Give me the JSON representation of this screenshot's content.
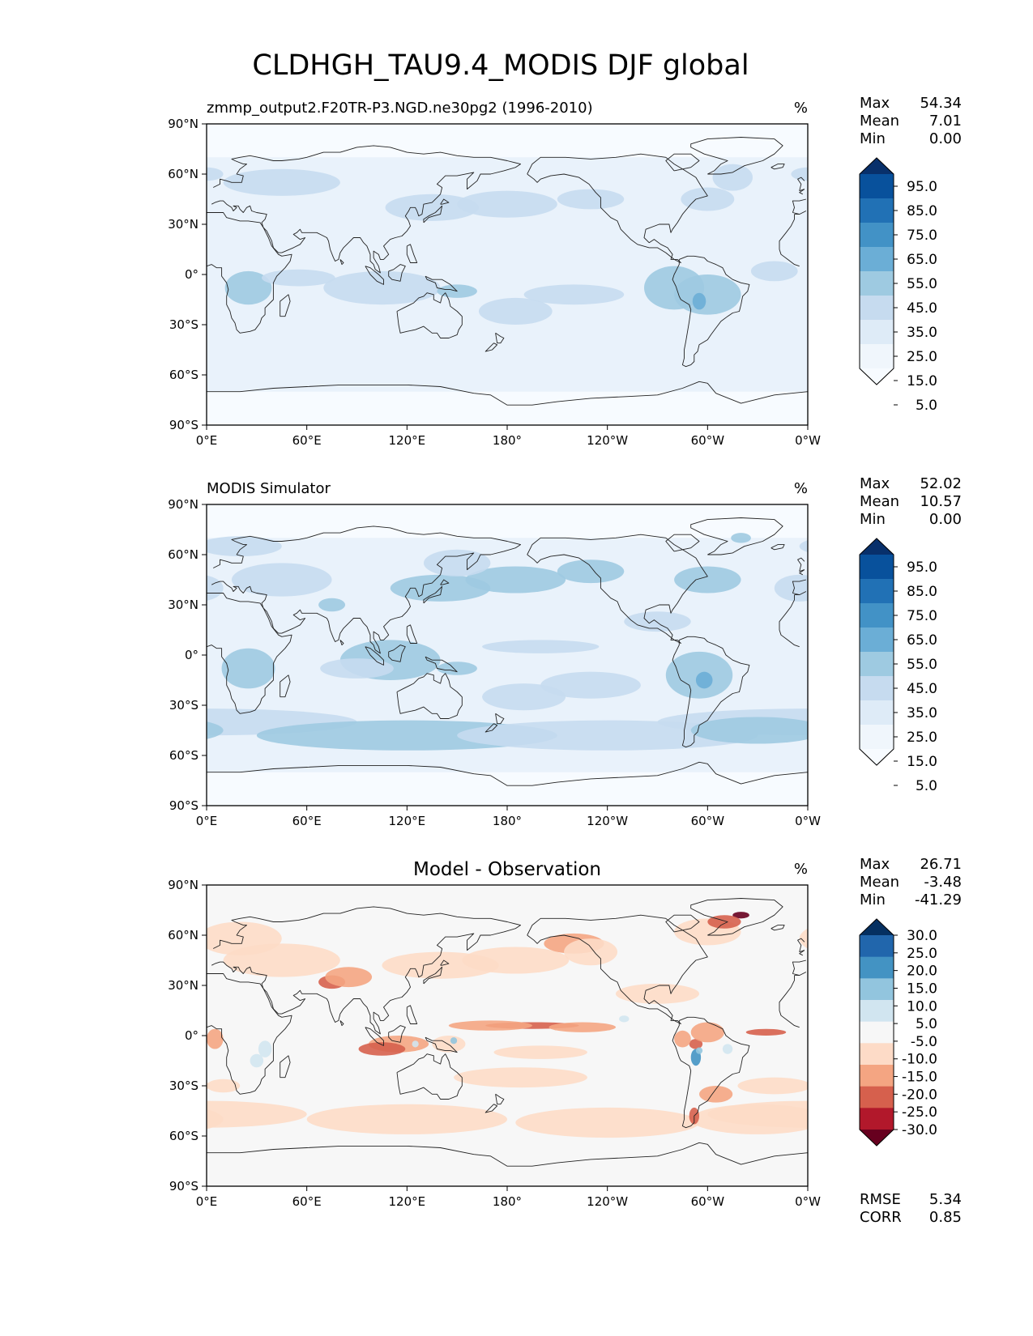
{
  "title": "CLDHGH_TAU9.4_MODIS DJF global",
  "lon_ticks": [
    "0°E",
    "60°E",
    "120°E",
    "180°",
    "120°W",
    "60°W",
    "0°W"
  ],
  "lat_ticks": [
    "90°N",
    "60°N",
    "30°N",
    "0°",
    "30°S",
    "60°S",
    "90°S"
  ],
  "stat_labels": {
    "max": "Max",
    "mean": "Mean",
    "min": "Min",
    "rmse": "RMSE",
    "corr": "CORR"
  },
  "colors": {
    "seq_scale": [
      "#f7fbff",
      "#deebf7",
      "#c6dbef",
      "#9ecae1",
      "#6baed6",
      "#4292c6",
      "#2171b5",
      "#08519c",
      "#08306b"
    ],
    "div_scale": [
      "#67001f",
      "#b2182b",
      "#d6604d",
      "#f4a582",
      "#fddbc7",
      "#f7f7f7",
      "#d1e5f0",
      "#92c5de",
      "#4393c3",
      "#2166ac",
      "#053061"
    ],
    "coast": "#222222"
  },
  "panels": [
    {
      "title": "zmmp_output2.F20TR-P3.NGD.ne30pg2 (1996-2010)",
      "title_style": "left",
      "units": "%",
      "max": "54.34",
      "mean": "7.01",
      "min": "0.00",
      "colorbar": {
        "type": "sequential",
        "labels": [
          "95.0",
          "85.0",
          "75.0",
          "65.0",
          "55.0",
          "45.0",
          "35.0",
          "25.0",
          "15.0",
          "5.0"
        ]
      }
    },
    {
      "title": "MODIS Simulator",
      "title_style": "left",
      "units": "%",
      "max": "52.02",
      "mean": "10.57",
      "min": "0.00",
      "colorbar": {
        "type": "sequential",
        "labels": [
          "95.0",
          "85.0",
          "75.0",
          "65.0",
          "55.0",
          "45.0",
          "35.0",
          "25.0",
          "15.0",
          "5.0"
        ]
      }
    },
    {
      "title": "Model - Observation",
      "title_style": "center",
      "units": "%",
      "max": "26.71",
      "mean": "-3.48",
      "min": "-41.29",
      "rmse": "5.34",
      "corr": "0.85",
      "colorbar": {
        "type": "diverging",
        "labels": [
          "30.0",
          "25.0",
          "20.0",
          "15.0",
          "10.0",
          "5.0",
          "-5.0",
          "-10.0",
          "-15.0",
          "-20.0",
          "-25.0",
          "-30.0"
        ]
      }
    }
  ]
}
